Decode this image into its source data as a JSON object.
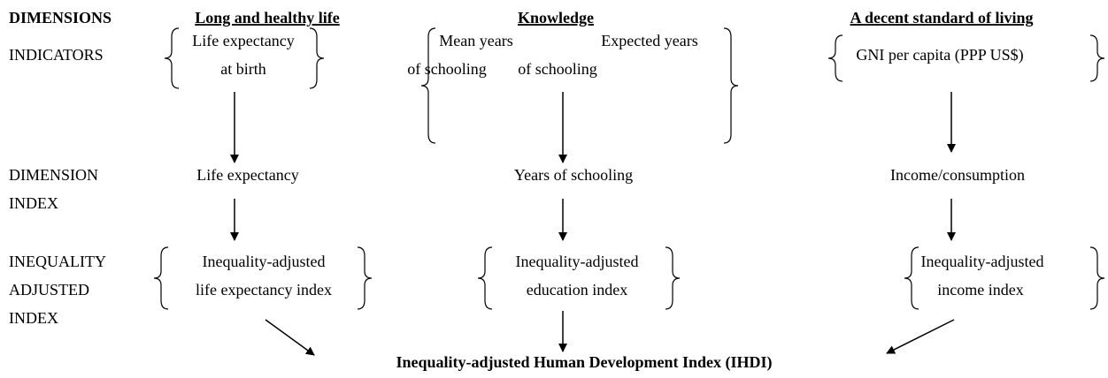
{
  "row_labels": {
    "dimensions": "DIMENSIONS",
    "indicators": "INDICATORS",
    "dimension_index": [
      "DIMENSION",
      "INDEX"
    ],
    "inequality_adjusted_index": [
      "INEQUALITY",
      "ADJUSTED",
      "INDEX"
    ]
  },
  "columns": [
    {
      "dimension": "Long and healthy life",
      "indicators": [
        [
          "Life expectancy",
          "at birth"
        ]
      ],
      "dimension_index": "Life expectancy",
      "adjusted_index": [
        "Inequality-adjusted",
        "life expectancy index"
      ]
    },
    {
      "dimension": "Knowledge",
      "indicators": [
        [
          "Mean years",
          "of schooling"
        ],
        [
          "Expected years",
          "of schooling"
        ]
      ],
      "dimension_index": "Years of schooling",
      "adjusted_index": [
        "Inequality-adjusted",
        "education index"
      ]
    },
    {
      "dimension": "A decent standard of living",
      "indicators": [
        [
          "GNI per capita (PPP US$)"
        ]
      ],
      "dimension_index": "Income/consumption",
      "adjusted_index": [
        "Inequality-adjusted",
        "income index"
      ]
    }
  ],
  "result": "Inequality-adjusted Human Development Index (IHDI)"
}
